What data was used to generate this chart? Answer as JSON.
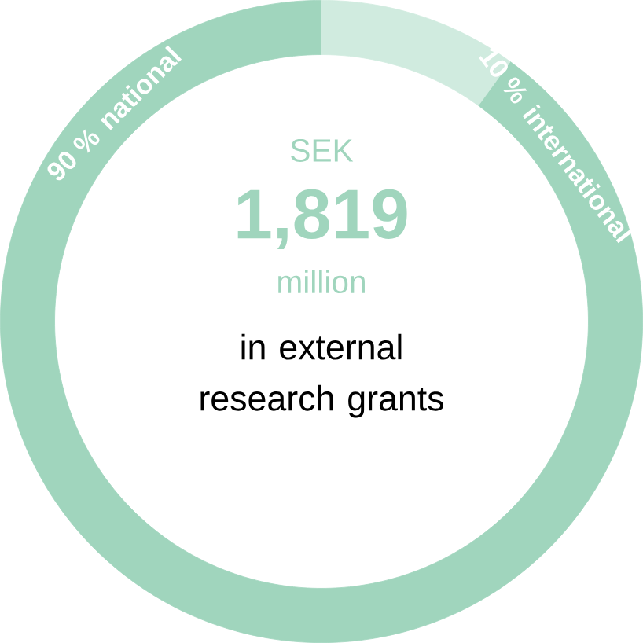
{
  "chart_data": {
    "type": "donut",
    "categories": [
      "national",
      "international"
    ],
    "values": [
      90,
      10
    ],
    "value_labels": [
      "90 %",
      "10 %"
    ],
    "colors": [
      "#a0d5bd",
      "#d0ebdf"
    ],
    "annotations": [
      "SEK",
      "1,819",
      "million",
      "in external research grants"
    ]
  }
}
